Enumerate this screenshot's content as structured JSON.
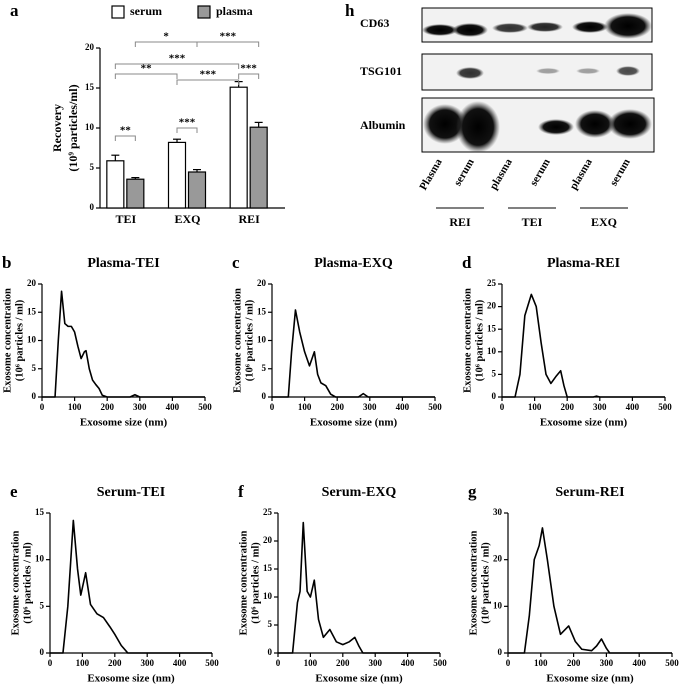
{
  "chart_data": [
    {
      "type": "bar",
      "label": "a",
      "categories": [
        "TEI",
        "EXQ",
        "REI"
      ],
      "series": [
        {
          "name": "serum",
          "color": "#ffffff",
          "values": [
            5.9,
            8.2,
            15.1
          ],
          "errors": [
            0.7,
            0.4,
            0.7
          ]
        },
        {
          "name": "plasma",
          "color": "#999999",
          "values": [
            3.6,
            4.5,
            10.1
          ],
          "errors": [
            0.2,
            0.3,
            0.6
          ]
        }
      ],
      "ylim": [
        0,
        20
      ],
      "yticks": [
        0,
        5,
        10,
        15,
        20
      ],
      "ylabel": [
        "Recovery",
        "(10⁹ particles/ml)"
      ],
      "annotations": [
        "*",
        "***",
        "***",
        "**",
        "***",
        "***",
        "***",
        "**"
      ]
    },
    {
      "type": "line",
      "label": "b",
      "title": "Plasma-TEI",
      "color": "#000000",
      "x": [
        0,
        40,
        50,
        60,
        70,
        80,
        90,
        100,
        110,
        120,
        130,
        135,
        145,
        155,
        165,
        175,
        185,
        200,
        270,
        285,
        300,
        500
      ],
      "values": [
        0,
        0,
        10,
        18.7,
        13,
        12.5,
        12.5,
        11.5,
        9,
        6.8,
        8,
        8.2,
        5,
        3,
        2.2,
        1.5,
        0.3,
        0,
        0,
        0.4,
        0,
        0
      ],
      "xlim": [
        0,
        500
      ],
      "xticks": [
        0,
        100,
        200,
        300,
        400,
        500
      ],
      "ylim": [
        0,
        20
      ],
      "yticks": [
        0,
        5,
        10,
        15,
        20
      ],
      "xlabel": "Exosome size (nm)",
      "ylabel": [
        "Exosome concentration",
        "(10⁶ particles / ml)"
      ]
    },
    {
      "type": "line",
      "label": "c",
      "title": "Plasma-EXQ",
      "color": "#000000",
      "x": [
        0,
        50,
        60,
        72,
        85,
        100,
        115,
        130,
        140,
        150,
        165,
        180,
        195,
        265,
        280,
        295,
        500
      ],
      "values": [
        0,
        0,
        8,
        15.4,
        11.5,
        8,
        5.5,
        8,
        4,
        2.5,
        2,
        0.5,
        0,
        0,
        0.6,
        0,
        0
      ],
      "xlim": [
        0,
        500
      ],
      "xticks": [
        0,
        100,
        200,
        300,
        400,
        500
      ],
      "ylim": [
        0,
        20
      ],
      "yticks": [
        0,
        5,
        10,
        15,
        20
      ],
      "xlabel": "Exosome size (nm)",
      "ylabel": [
        "Exosome concentration",
        "(10⁶ particles / ml)"
      ]
    },
    {
      "type": "line",
      "label": "d",
      "title": "Plasma-REI",
      "color": "#000000",
      "x": [
        0,
        40,
        55,
        70,
        90,
        105,
        120,
        135,
        150,
        165,
        180,
        190,
        200,
        280,
        290,
        300,
        500
      ],
      "values": [
        0,
        0,
        5,
        18,
        22.7,
        20,
        12,
        5,
        3,
        4.5,
        5.8,
        2.5,
        0,
        0,
        0.2,
        0,
        0
      ],
      "xlim": [
        0,
        500
      ],
      "xticks": [
        0,
        100,
        200,
        300,
        400,
        500
      ],
      "ylim": [
        0,
        25
      ],
      "yticks": [
        0,
        5,
        10,
        15,
        20,
        25
      ],
      "xlabel": "Exosome size (nm)",
      "ylabel": [
        "Exosome concentration",
        "(10⁶ particles / ml)"
      ]
    },
    {
      "type": "line",
      "label": "e",
      "title": "Serum-TEI",
      "color": "#000000",
      "x": [
        0,
        40,
        55,
        72,
        85,
        95,
        110,
        125,
        145,
        165,
        185,
        200,
        220,
        240,
        500
      ],
      "values": [
        0,
        0,
        5,
        14.2,
        9,
        6.2,
        8.6,
        5.2,
        4.2,
        3.8,
        2.8,
        2,
        0.8,
        0,
        0
      ],
      "xlim": [
        0,
        500
      ],
      "xticks": [
        0,
        100,
        200,
        300,
        400,
        500
      ],
      "ylim": [
        0,
        15
      ],
      "yticks": [
        0,
        5,
        10,
        15
      ],
      "xlabel": "Exosome size (nm)",
      "ylabel": [
        "Exosome concentration",
        "(10⁶ particles / ml)"
      ]
    },
    {
      "type": "line",
      "label": "f",
      "title": "Serum-EXQ",
      "color": "#000000",
      "x": [
        0,
        45,
        60,
        68,
        78,
        90,
        100,
        112,
        125,
        140,
        160,
        180,
        200,
        220,
        237,
        250,
        262,
        500
      ],
      "values": [
        0,
        0,
        9,
        11,
        23.3,
        11,
        10,
        13,
        6,
        2.8,
        4.2,
        2,
        1.5,
        2,
        2.8,
        1.2,
        0,
        0
      ],
      "xlim": [
        0,
        500
      ],
      "xticks": [
        0,
        100,
        200,
        300,
        400,
        500
      ],
      "ylim": [
        0,
        25
      ],
      "yticks": [
        0,
        5,
        10,
        15,
        20,
        25
      ],
      "xlabel": "Exosome size (nm)",
      "ylabel": [
        "Exosome concentration",
        "(10⁶ particles / ml)"
      ]
    },
    {
      "type": "line",
      "label": "g",
      "title": "Serum-REI",
      "color": "#000000",
      "x": [
        0,
        50,
        65,
        80,
        95,
        105,
        120,
        140,
        160,
        185,
        205,
        225,
        255,
        270,
        285,
        300,
        310,
        500
      ],
      "values": [
        0,
        0,
        8,
        20,
        23,
        26.8,
        20,
        10,
        4,
        5.8,
        2.5,
        0.8,
        0.5,
        1.5,
        3,
        1,
        0,
        0
      ],
      "xlim": [
        0,
        500
      ],
      "xticks": [
        0,
        100,
        200,
        300,
        400,
        500
      ],
      "ylim": [
        0,
        30
      ],
      "yticks": [
        0,
        10,
        20,
        30
      ],
      "xlabel": "Exosome size (nm)",
      "ylabel": [
        "Exosome concentration",
        "(10⁶ particles / ml)"
      ]
    }
  ],
  "blot": {
    "label": "h",
    "rows": [
      "CD63",
      "TSG101",
      "Albumin"
    ],
    "lanes": [
      "Plasma",
      "serum",
      "plasma",
      "serum",
      "plasma",
      "serum"
    ],
    "groups": [
      "REI",
      "TEI",
      "EXQ"
    ]
  }
}
